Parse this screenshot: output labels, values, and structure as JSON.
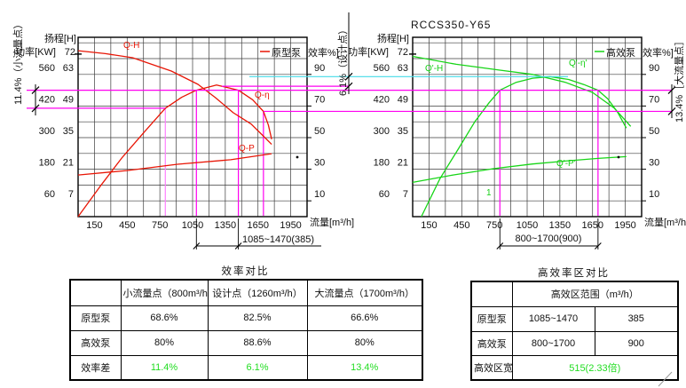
{
  "colors": {
    "red": "#e81606",
    "green": "#17d517",
    "magenta": "#ff00f0",
    "pink": "#ff80ff",
    "cyan": "#45dce8",
    "grid": "#3c3c3c",
    "table_green": "#22dd22"
  },
  "chart_data": [
    {
      "type": "line",
      "pump": "原型泵",
      "legend": "原型泵",
      "eff_axis_label": "效率%]",
      "xlabel": "流量[m³/h]",
      "x_range": [
        0,
        2100
      ],
      "x_ticks": [
        150,
        450,
        750,
        1050,
        1350,
        1650,
        1950
      ],
      "y_axes": {
        "head": {
          "label": "扬程[H]",
          "ticks": [
            7,
            21,
            35,
            49,
            63
          ],
          "max_label": "72"
        },
        "power": {
          "label": "功率[KW]",
          "ticks": [
            60,
            180,
            300,
            420,
            560
          ]
        },
        "efficiency": {
          "ticks": [
            10,
            30,
            50,
            70,
            90
          ]
        }
      },
      "series": [
        {
          "name": "Q-H",
          "axis": "head",
          "color": "#e81606",
          "points": [
            [
              0,
              73.5
            ],
            [
              250,
              72.2
            ],
            [
              500,
              70.4
            ],
            [
              855,
              64.5
            ],
            [
              1100,
              58.6
            ],
            [
              1260,
              52.7
            ],
            [
              1424,
              46
            ],
            [
              1587,
              41
            ],
            [
              1693,
              36
            ],
            [
              1775,
              32
            ]
          ]
        },
        {
          "name": "Q-η",
          "axis": "efficiency",
          "color": "#e81606",
          "points": [
            [
              0,
              0
            ],
            [
              200,
              19
            ],
            [
              400,
              37
            ],
            [
              600,
              53
            ],
            [
              800,
              68.6
            ],
            [
              950,
              75.5
            ],
            [
              1085,
              80
            ],
            [
              1270,
              83.3
            ],
            [
              1470,
              80
            ],
            [
              1600,
              74
            ],
            [
              1700,
              66.6
            ],
            [
              1745,
              58
            ],
            [
              1775,
              49
            ]
          ]
        },
        {
          "name": "Q-P",
          "axis": "power",
          "color": "#e81606",
          "points": [
            [
              0,
              158
            ],
            [
              448,
              175
            ],
            [
              912,
              199
            ],
            [
              1400,
              216
            ],
            [
              1775,
              239
            ]
          ]
        }
      ],
      "key_points": {
        "small_flow": {
          "flow": 800,
          "eff": 68.6
        },
        "design": {
          "flow": 1260,
          "eff": 82.5
        },
        "large_flow": {
          "flow": 1700,
          "eff": 66.6
        }
      },
      "markers": {
        "verticals": [
          {
            "flow": 800,
            "to_eff": 68.6,
            "color": "#ff80ff"
          },
          {
            "flow": 1085,
            "to_eff": 80,
            "color": "#ff00f0"
          },
          {
            "flow": 1470,
            "to_eff": 80,
            "color": "#ff00f0"
          },
          {
            "flow": 1700,
            "to_eff": 66.6,
            "color": "#ff00f0"
          }
        ]
      },
      "zone": [
        1085,
        1470
      ],
      "zone_label": "1085~1470(385)"
    },
    {
      "type": "line",
      "title": "RCCS350-Y65",
      "pump": "高效泵",
      "legend": "高效泵",
      "eff_axis_label": "效率%]",
      "xlabel": "流量[m³/h]",
      "x_range": [
        0,
        2100
      ],
      "x_ticks": [
        150,
        450,
        750,
        1050,
        1350,
        1650,
        1950
      ],
      "y_axes": {
        "head": {
          "label": "扬程[H]",
          "ticks": [
            7,
            21,
            35,
            49,
            63
          ],
          "max_label": "72"
        },
        "power": {
          "label": "功率[KW]",
          "ticks": [
            60,
            180,
            300,
            420,
            560
          ]
        },
        "efficiency": {
          "ticks": [
            10,
            30,
            50,
            70,
            90
          ]
        }
      },
      "series": [
        {
          "name": "Q'-H",
          "axis": "head",
          "color": "#17d517",
          "points": [
            [
              0,
              71
            ],
            [
              400,
              67.5
            ],
            [
              800,
              64.9
            ],
            [
              1100,
              63
            ],
            [
              1400,
              59.5
            ],
            [
              1650,
              55
            ],
            [
              1850,
              48
            ],
            [
              2000,
              40
            ]
          ]
        },
        {
          "name": "Q'-η'",
          "axis": "efficiency",
          "color": "#17d517",
          "points": [
            [
              80,
              0
            ],
            [
              250,
              24
            ],
            [
              420,
              43
            ],
            [
              570,
              60
            ],
            [
              700,
              72
            ],
            [
              800,
              80
            ],
            [
              950,
              85
            ],
            [
              1100,
              87.6
            ],
            [
              1260,
              88.6
            ],
            [
              1430,
              86.8
            ],
            [
              1570,
              83.6
            ],
            [
              1700,
              80
            ],
            [
              1790,
              74.5
            ],
            [
              1880,
              66
            ],
            [
              1960,
              56
            ]
          ]
        },
        {
          "name": "Q'-P'",
          "axis": "power",
          "color": "#17d517",
          "points": [
            [
              0,
              130
            ],
            [
              370,
              158
            ],
            [
              740,
              182
            ],
            [
              1100,
              200
            ],
            [
              1400,
              211
            ],
            [
              1700,
              221
            ],
            [
              1960,
              228
            ]
          ]
        }
      ],
      "key_points": {
        "small_flow": {
          "flow": 800,
          "eff": 80
        },
        "design": {
          "flow": 1260,
          "eff": 88.6
        },
        "large_flow": {
          "flow": 1700,
          "eff": 80
        }
      },
      "markers": {
        "verticals": [
          {
            "flow": 800,
            "to_eff": 80,
            "color": "#ff00f0"
          },
          {
            "flow": 1700,
            "to_eff": 80,
            "color": "#ff00f0"
          }
        ]
      },
      "zone": [
        800,
        1700
      ],
      "zone_label": "800~1700(900)",
      "point_label": "1"
    }
  ],
  "annotations": {
    "ref_lines": [
      {
        "eff": 88.6,
        "color": "#45dce8"
      },
      {
        "eff": 82.5,
        "color": "#ff00f0"
      },
      {
        "eff": 80,
        "color": "#ff00f0"
      },
      {
        "eff": 68.6,
        "color": "#ff00f0"
      },
      {
        "eff": 66.6,
        "color": "#ff00f0"
      }
    ],
    "dims": [
      {
        "text": "11.4%（小流量点）",
        "between": [
          80,
          68.6
        ]
      },
      {
        "text": "6.1%（设计点）",
        "between": [
          88.6,
          82.5
        ]
      },
      {
        "text": "13.4%［大流量点］",
        "between": [
          80,
          66.6
        ]
      }
    ]
  },
  "eff_table": {
    "title": "效率对比",
    "col_headers": [
      "",
      "小流量点（800m³/h）",
      "设计点（1260m³/h）",
      "大流量点（1700m³/h）"
    ],
    "rows": [
      {
        "label": "原型泵",
        "values": [
          "68.6%",
          "82.5%",
          "66.6%"
        ]
      },
      {
        "label": "高效泵",
        "values": [
          "80%",
          "88.6%",
          "80%"
        ]
      },
      {
        "label": "效率差",
        "values": [
          "11.4%",
          "6.1%",
          "13.4%"
        ]
      }
    ]
  },
  "zone_table": {
    "title": "高效率区对比",
    "span_header": "高效区范围（m³/h）",
    "rows": [
      {
        "label": "原型泵",
        "range": "1085~1470",
        "width": "385"
      },
      {
        "label": "高效泵",
        "range": "800~1700",
        "width": "900"
      },
      {
        "label": "高效区宽",
        "merged": "515(2.33倍)"
      }
    ]
  }
}
